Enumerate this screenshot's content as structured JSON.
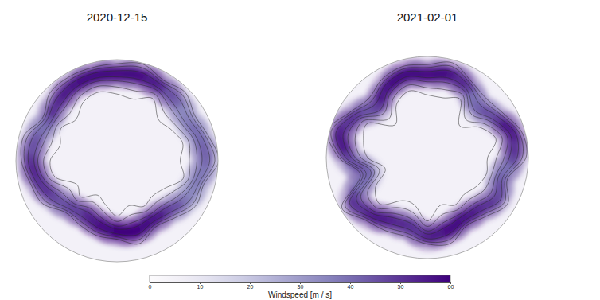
{
  "chart_data": {
    "type": "map",
    "panels": [
      {
        "title": "2020-12-15",
        "jet": {
          "angle": [
            0,
            15,
            30,
            45,
            60,
            75,
            90,
            105,
            120,
            135,
            150,
            165,
            180,
            195,
            210,
            225,
            240,
            255,
            270,
            285,
            300,
            315,
            330,
            345
          ],
          "radius": [
            0.86,
            0.87,
            0.85,
            0.83,
            0.8,
            0.85,
            0.88,
            0.82,
            0.78,
            0.7,
            0.68,
            0.72,
            0.7,
            0.66,
            0.62,
            0.65,
            0.72,
            0.8,
            0.85,
            0.83,
            0.78,
            0.82,
            0.86,
            0.87
          ],
          "speed": [
            55,
            58,
            55,
            45,
            35,
            40,
            42,
            38,
            35,
            45,
            55,
            58,
            60,
            58,
            55,
            48,
            45,
            50,
            52,
            45,
            40,
            50,
            55,
            58
          ]
        }
      },
      {
        "title": "2021-02-01",
        "jet": {
          "angle": [
            0,
            15,
            30,
            45,
            60,
            75,
            90,
            105,
            120,
            135,
            150,
            165,
            180,
            195,
            210,
            225,
            240,
            255,
            270,
            285,
            300,
            315,
            330,
            345
          ],
          "radius": [
            0.82,
            0.85,
            0.8,
            0.7,
            0.78,
            0.88,
            0.85,
            0.75,
            0.8,
            0.72,
            0.7,
            0.75,
            0.78,
            0.7,
            0.72,
            0.8,
            0.85,
            0.6,
            0.78,
            0.9,
            0.82,
            0.7,
            0.8,
            0.85
          ],
          "speed": [
            55,
            58,
            52,
            40,
            45,
            55,
            50,
            40,
            45,
            50,
            55,
            58,
            55,
            50,
            52,
            55,
            50,
            40,
            45,
            55,
            50,
            45,
            55,
            58
          ]
        }
      }
    ],
    "colorbar": {
      "range": [
        0,
        60
      ],
      "ticks": [
        0,
        10,
        20,
        30,
        40,
        50,
        60
      ],
      "label": "Windspeed [m / s]"
    }
  }
}
